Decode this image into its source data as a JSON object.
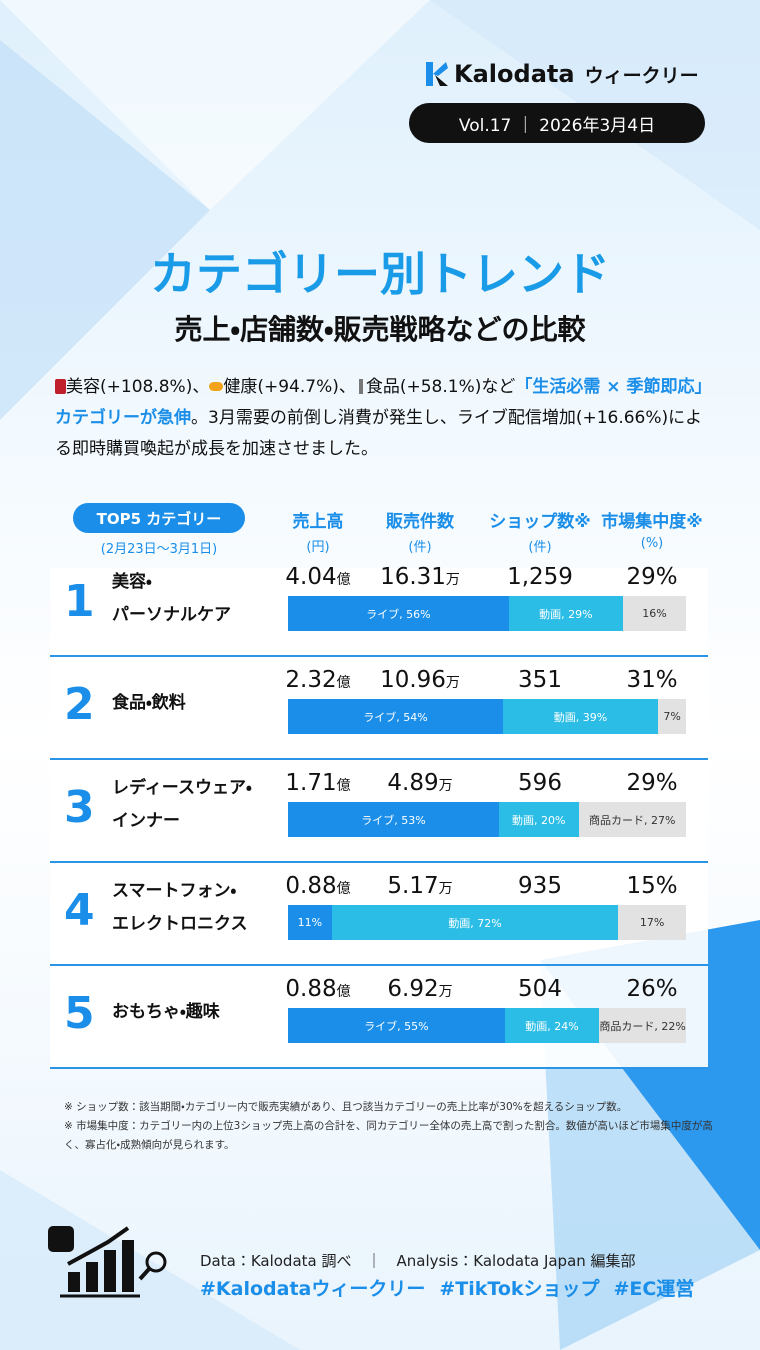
{
  "header": {
    "brand": "Kalodata",
    "brand_suffix": "ウィークリー",
    "issue": "Vol.17 ｜ 2026年3月4日"
  },
  "title": "カテゴリー別トレンド",
  "subtitle": "売上・店舗数・販売戦略などの比較",
  "intro": {
    "parts": [
      "美容(+108.8%)、",
      "健康(+94.7%)、",
      "食品(+58.1%)など",
      "「生活必需 × 季節即応」カテゴリーが急伸",
      "。3月需要の前倒し消費が発生し、ライブ配信増加(+16.66%)による即時購買喚起が成長を加速させました。"
    ]
  },
  "table": {
    "label": "TOP5 カテゴリー",
    "period": "(2月23日〜3月1日)",
    "columns": [
      {
        "name": "売上高",
        "unit": "(円)"
      },
      {
        "name": "販売件数",
        "unit": "(件)"
      },
      {
        "name": "ショップ数※",
        "unit": "(件)"
      },
      {
        "name": "市場集中度※",
        "unit": "(%)"
      }
    ],
    "segment_colors": [
      "#1a8ee8",
      "#2bbde6",
      "#e2e2e2"
    ],
    "rows": [
      {
        "rank": "1",
        "name": [
          "美容・",
          "パーソナルケア"
        ],
        "sales": "4.04",
        "sales_unit": "億",
        "units": "16.31",
        "units_unit": "万",
        "shops": "1,259",
        "share": "29%",
        "mix": {
          "values": [
            56,
            29,
            16
          ],
          "value_labels": [
            "ライブ, 56%",
            "動画, 29%",
            "16%"
          ]
        }
      },
      {
        "rank": "2",
        "name": [
          "食品・飲料"
        ],
        "sales": "2.32",
        "sales_unit": "億",
        "units": "10.96",
        "units_unit": "万",
        "shops": "351",
        "share": "31%",
        "mix": {
          "values": [
            54,
            39,
            7
          ],
          "value_labels": [
            "ライブ, 54%",
            "動画, 39%",
            "7%"
          ]
        }
      },
      {
        "rank": "3",
        "name": [
          "レディースウェア・",
          "インナー"
        ],
        "sales": "1.71",
        "sales_unit": "億",
        "units": "4.89",
        "units_unit": "万",
        "shops": "596",
        "share": "29%",
        "mix": {
          "values": [
            53,
            20,
            27
          ],
          "value_labels": [
            "ライブ, 53%",
            "動画, 20%",
            "商品カード, 27%"
          ]
        }
      },
      {
        "rank": "4",
        "name": [
          "スマートフォン・",
          "エレクトロニクス"
        ],
        "sales": "0.88",
        "sales_unit": "億",
        "units": "5.17",
        "units_unit": "万",
        "shops": "935",
        "share": "15%",
        "mix": {
          "values": [
            11,
            72,
            17
          ],
          "value_labels": [
            "11%",
            "動画, 72%",
            "17%"
          ]
        }
      },
      {
        "rank": "5",
        "name": [
          "おもちゃ・趣味"
        ],
        "sales": "0.88",
        "sales_unit": "億",
        "units": "6.92",
        "units_unit": "万",
        "shops": "504",
        "share": "26%",
        "mix": {
          "values": [
            55,
            24,
            22
          ],
          "value_labels": [
            "ライブ, 55%",
            "動画, 24%",
            "商品カード, 22%"
          ]
        }
      }
    ]
  },
  "footnotes": [
    "※ ショップ数：該当期間・カテゴリー内で販売実績があり、且つ該当カテゴリーの売上比率が30%を超えるショップ数。",
    "※ 市場集中度：カテゴリー内の上位3ショップ売上高の合計を、同カテゴリー全体の売上高で割った割合。数値が高いほど市場集中度が高く、寡占化・成熟傾向が見られます。"
  ],
  "footer": {
    "source": "Data：Kalodata 調べ　｜　Analysis：Kalodata Japan 編集部",
    "hashtags": [
      "#Kalodataウィークリー",
      "#TikTokショップ",
      "#EC運営"
    ]
  }
}
